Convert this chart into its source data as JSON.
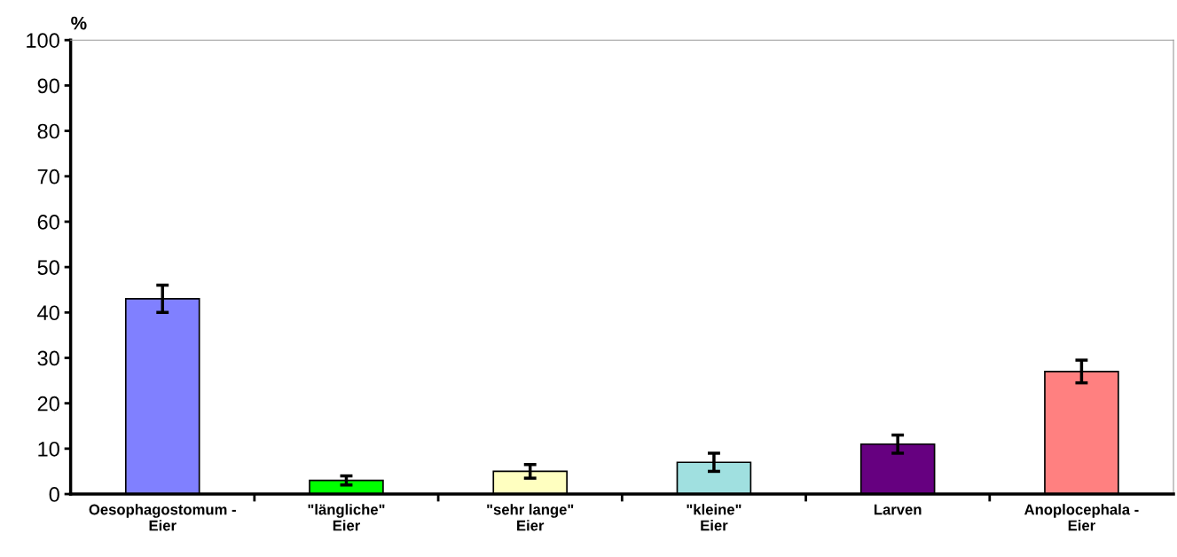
{
  "chart_data": {
    "type": "bar",
    "ylabel": "%",
    "categories": [
      "Oesophagostomum -\nEier",
      "\"längliche\"\nEier",
      "\"sehr lange\"\nEier",
      "\"kleine\"\nEier",
      "Larven",
      "Anoplocephala -\nEier"
    ],
    "values": [
      43,
      3,
      5,
      7,
      11,
      27
    ],
    "errors": [
      3,
      1,
      1.5,
      2,
      2,
      2.5
    ],
    "colors": [
      "#8080ff",
      "#00ff00",
      "#ffffc0",
      "#a0e0e0",
      "#660080",
      "#ff8080"
    ],
    "ylim": [
      0,
      100
    ],
    "yticks": [
      0,
      10,
      20,
      30,
      40,
      50,
      60,
      70,
      80,
      90,
      100
    ],
    "grid": false,
    "legend": false
  }
}
